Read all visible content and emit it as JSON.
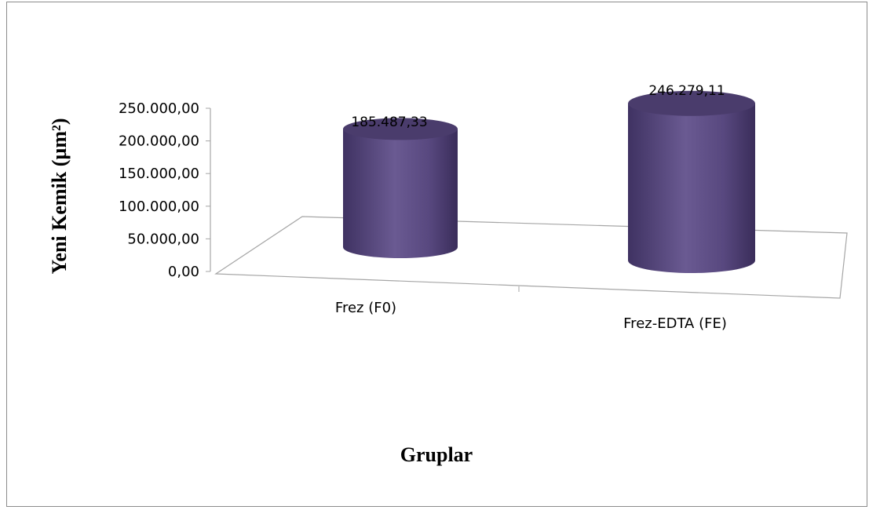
{
  "chart_data": {
    "type": "bar",
    "bar_shape": "cylinder",
    "three_d": true,
    "categories": [
      "Frez (F0)",
      "Frez-EDTA (FE)"
    ],
    "values": [
      185487.33,
      246279.11
    ],
    "data_labels": [
      "185.487,33",
      "246.279,11"
    ],
    "xlabel": "Gruplar",
    "ylabel": "Yeni Kemik (µm²)",
    "ylim": [
      0,
      250000
    ],
    "yticks": [
      0,
      50000,
      100000,
      150000,
      200000,
      250000
    ],
    "ytick_labels": [
      "0,00",
      "50.000,00",
      "100.000,00",
      "150.000,00",
      "200.000,00",
      "250.000,00"
    ],
    "grid": false,
    "legend": "none",
    "bar_color": "#5a4a80"
  }
}
